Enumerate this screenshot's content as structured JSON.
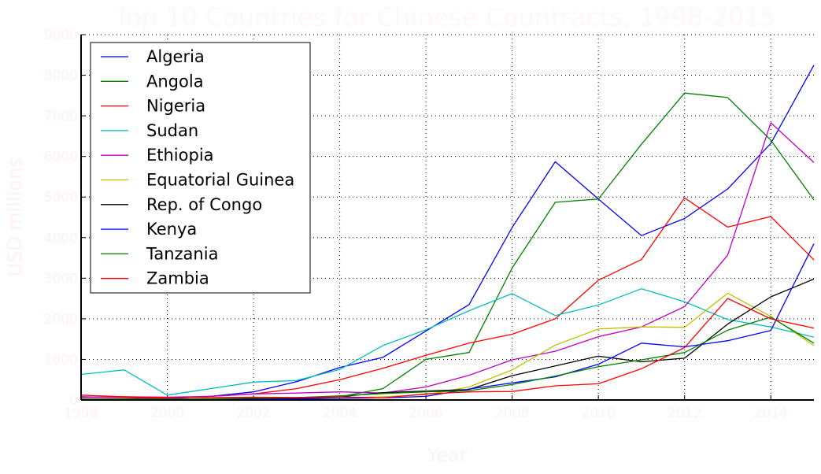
{
  "chart_data": {
    "type": "line",
    "title": "Top 10 Countries for Chinese Countracts, 1998-2015",
    "xlabel": "Year",
    "ylabel": "USD millions",
    "xlim": [
      1998,
      2015
    ],
    "ylim": [
      0,
      9000
    ],
    "x_ticks": [
      "1998",
      "2000",
      "2002",
      "2004",
      "2006",
      "2008",
      "2010",
      "2012",
      "2014"
    ],
    "y_ticks": [
      "0",
      "1000",
      "2000",
      "3000",
      "4000",
      "5000",
      "6000",
      "7000",
      "8000",
      "9000"
    ],
    "grid": true,
    "legend_position": "top-left",
    "x": [
      1998,
      1999,
      2000,
      2001,
      2002,
      2003,
      2004,
      2005,
      2006,
      2007,
      2008,
      2009,
      2010,
      2011,
      2012,
      2013,
      2014,
      2015
    ],
    "series": [
      {
        "name": "Algeria",
        "color": "#0000ff",
        "values": [
          80,
          60,
          30,
          90,
          200,
          450,
          800,
          1050,
          1700,
          2350,
          4250,
          5870,
          4950,
          4050,
          4470,
          5200,
          6320,
          8250
        ]
      },
      {
        "name": "Angola",
        "color": "#008000",
        "values": [
          20,
          10,
          0,
          10,
          20,
          40,
          80,
          280,
          1000,
          1170,
          3250,
          4870,
          4950,
          6300,
          7560,
          7450,
          6400,
          4930
        ]
      },
      {
        "name": "Nigeria",
        "color": "#ff0000",
        "values": [
          70,
          60,
          50,
          90,
          150,
          280,
          500,
          780,
          1100,
          1400,
          1620,
          2000,
          2950,
          3460,
          4980,
          4260,
          4520,
          3450
        ]
      },
      {
        "name": "Sudan",
        "color": "#00bfbf",
        "values": [
          630,
          740,
          120,
          280,
          440,
          480,
          750,
          1340,
          1730,
          2200,
          2620,
          2080,
          2340,
          2740,
          2420,
          1980,
          1800,
          1550
        ]
      },
      {
        "name": "Ethiopia",
        "color": "#bf00bf",
        "values": [
          60,
          80,
          70,
          90,
          150,
          170,
          200,
          170,
          320,
          610,
          990,
          1200,
          1560,
          1800,
          2300,
          3570,
          6830,
          5850
        ]
      },
      {
        "name": "Equatorial Guinea",
        "color": "#bfbf00",
        "values": [
          30,
          20,
          20,
          30,
          20,
          40,
          50,
          80,
          130,
          320,
          740,
          1350,
          1750,
          1800,
          1790,
          2630,
          2060,
          1340
        ]
      },
      {
        "name": "Rep. of Congo",
        "color": "#000000",
        "values": [
          10,
          10,
          20,
          20,
          30,
          40,
          80,
          180,
          220,
          260,
          600,
          840,
          1080,
          940,
          1030,
          1870,
          2540,
          2980
        ]
      },
      {
        "name": "Kenya",
        "color": "#0000ff",
        "values": [
          10,
          10,
          0,
          10,
          20,
          30,
          40,
          50,
          90,
          270,
          420,
          570,
          880,
          1400,
          1310,
          1460,
          1710,
          3850
        ]
      },
      {
        "name": "Tanzania",
        "color": "#008000",
        "values": [
          20,
          30,
          20,
          30,
          50,
          60,
          100,
          160,
          200,
          230,
          380,
          590,
          820,
          990,
          1170,
          1720,
          2040,
          1400
        ]
      },
      {
        "name": "Zambia",
        "color": "#ff0000",
        "values": [
          120,
          80,
          60,
          60,
          70,
          60,
          80,
          50,
          150,
          200,
          210,
          350,
          400,
          770,
          1290,
          2500,
          2000,
          1770
        ]
      }
    ]
  }
}
